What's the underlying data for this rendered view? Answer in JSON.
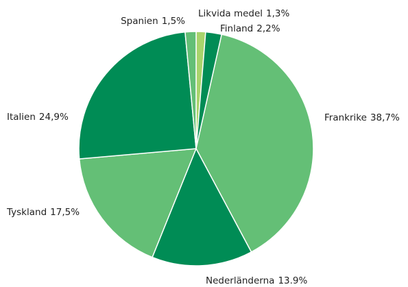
{
  "chart_data": {
    "type": "pie",
    "categories": [
      "Likvida medel",
      "Finland",
      "Frankrike",
      "Nederländerna",
      "Tyskland",
      "Italien",
      "Spanien"
    ],
    "values": [
      1.3,
      2.2,
      38.7,
      13.9,
      17.5,
      24.9,
      1.5
    ],
    "value_labels": [
      "1,3%",
      "2,2%",
      "38,7%",
      "13.9%",
      "17,5%",
      "24,9%",
      "1,5%"
    ],
    "colors": [
      "#a8d46c",
      "#008c55",
      "#64bf76",
      "#008c55",
      "#64bf76",
      "#008c55",
      "#64bf76"
    ]
  }
}
